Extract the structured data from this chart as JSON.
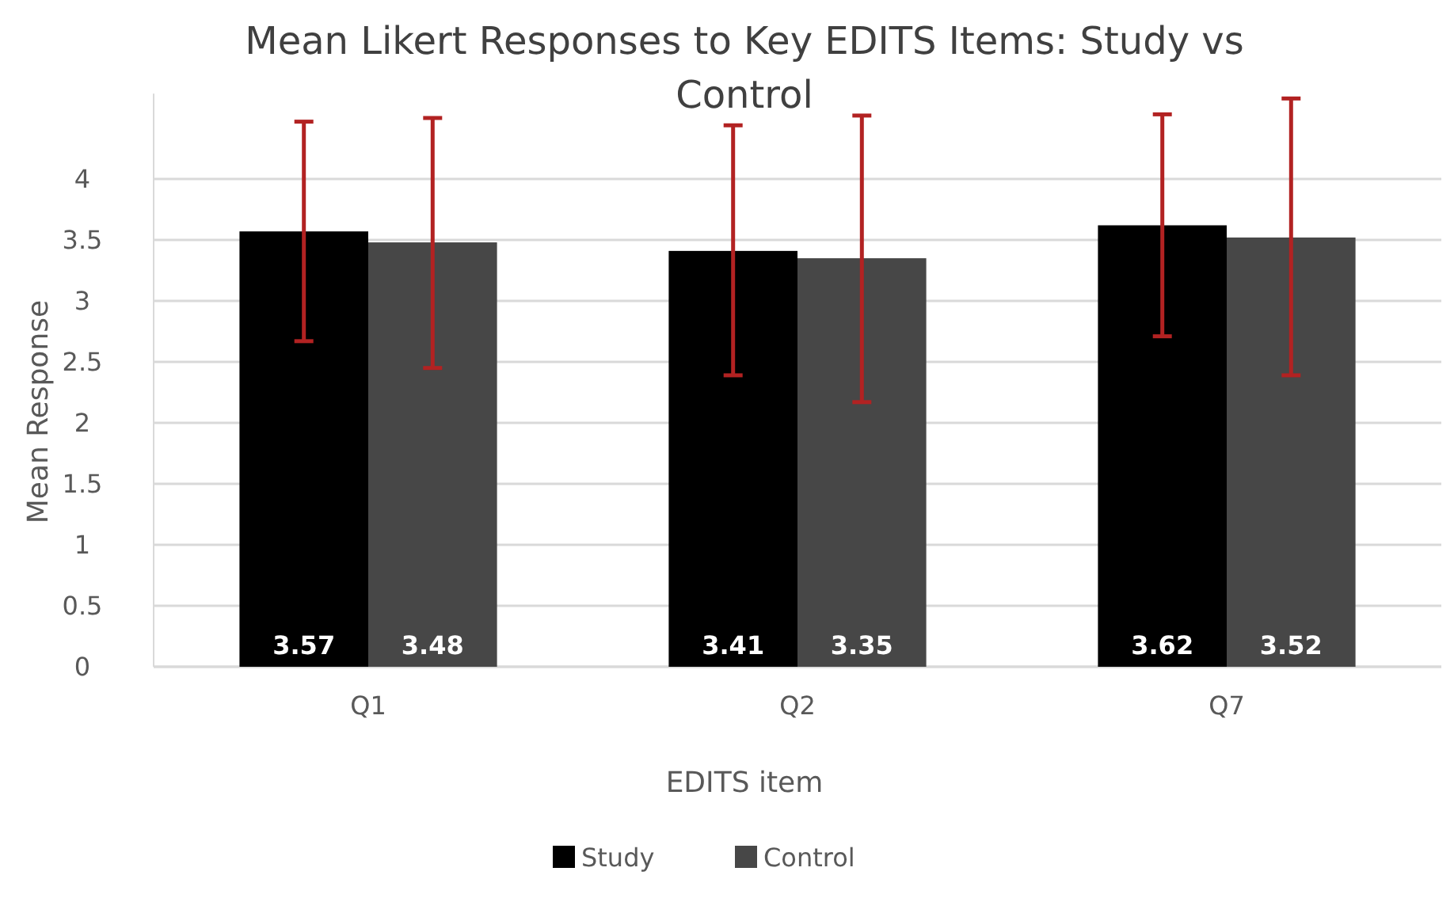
{
  "chart_data": {
    "type": "bar",
    "title": "Mean Likert Responses to Key EDITS Items: Study vs Control",
    "xlabel": "EDITS item",
    "ylabel": "Mean Response",
    "categories": [
      "Q1",
      "Q2",
      "Q7"
    ],
    "series": [
      {
        "name": "Study",
        "color": "#000000",
        "values": [
          3.57,
          3.41,
          3.62
        ],
        "errors": [
          [
            2.67,
            4.47
          ],
          [
            2.39,
            4.44
          ],
          [
            2.71,
            4.53
          ]
        ]
      },
      {
        "name": "Control",
        "color": "#474747",
        "values": [
          3.48,
          3.35,
          3.52
        ],
        "errors": [
          [
            2.45,
            4.5
          ],
          [
            2.17,
            4.52
          ],
          [
            2.39,
            4.66
          ]
        ]
      }
    ],
    "ylim": [
      0,
      4.7
    ],
    "yticks": [
      0,
      0.5,
      1,
      1.5,
      2,
      2.5,
      3,
      3.5,
      4
    ],
    "grid": "y",
    "legend": "bottom",
    "data_labels": true
  }
}
